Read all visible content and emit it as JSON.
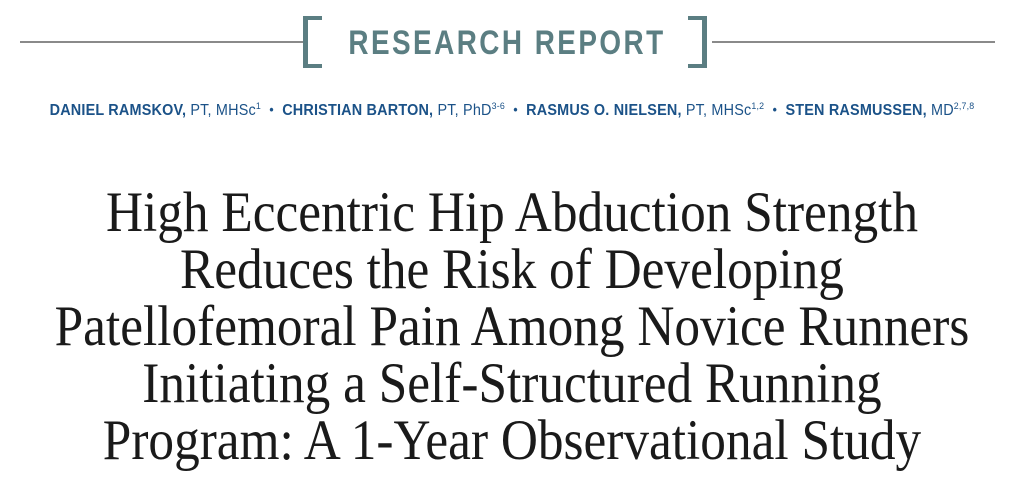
{
  "masthead": {
    "label": "RESEARCH REPORT",
    "accent_color": "#5b7e82",
    "rule_color": "#8a8a8a"
  },
  "authors": {
    "separator": "•",
    "color": "#1b5288",
    "list": [
      {
        "name": "DANIEL RAMSKOV,",
        "credentials": " PT, MHSc",
        "superscript": "1"
      },
      {
        "name": "CHRISTIAN BARTON,",
        "credentials": " PT, PhD",
        "superscript": "3-6"
      },
      {
        "name": "RASMUS O. NIELSEN,",
        "credentials": " PT, MHSc",
        "superscript": "1,2"
      },
      {
        "name": "STEN RASMUSSEN,",
        "credentials": " MD",
        "superscript": "2,7,8"
      }
    ]
  },
  "title": {
    "color": "#1a1a1a",
    "lines": [
      "High Eccentric Hip Abduction Strength",
      "Reduces the Risk of Developing",
      "Patellofemoral Pain Among Novice Runners",
      "Initiating a Self-Structured Running",
      "Program: A 1-Year Observational Study"
    ]
  }
}
